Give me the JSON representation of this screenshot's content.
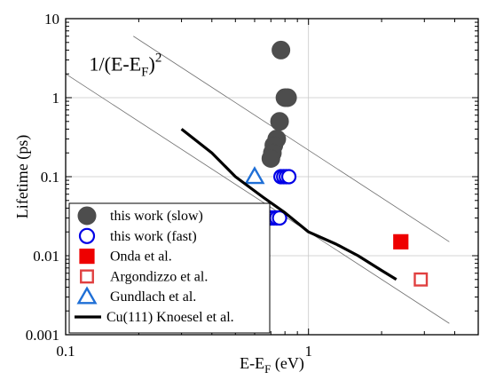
{
  "chart_data": {
    "type": "scatter",
    "xlabel": {
      "main": "E-E",
      "sub": "F",
      "tail": " (eV)"
    },
    "ylabel": "Lifetime (ps)",
    "xscale": "log",
    "yscale": "log",
    "xlim": [
      0.1,
      5
    ],
    "ylim": [
      0.001,
      10
    ],
    "x_ticks": [
      {
        "value": 0.1,
        "label": "0.1"
      },
      {
        "value": 1,
        "label": "1"
      }
    ],
    "y_ticks": [
      {
        "value": 0.001,
        "label": "0.001"
      },
      {
        "value": 0.01,
        "label": "0.01"
      },
      {
        "value": 0.1,
        "label": "0.1"
      },
      {
        "value": 1,
        "label": "1"
      },
      {
        "value": 10,
        "label": "10"
      }
    ],
    "grid": true,
    "legend_position": "bottom-left",
    "annotation": {
      "text": "1/(E-E",
      "sub": "F",
      "close": ")",
      "sup": "2",
      "x": 0.125,
      "y": 2.2
    },
    "reference_lines": [
      {
        "slope": -2,
        "x": [
          0.1,
          3.8
        ],
        "y": [
          2.0,
          0.00139
        ]
      },
      {
        "slope": -2,
        "x": [
          0.19,
          3.8
        ],
        "y": [
          6.0,
          0.015
        ]
      }
    ],
    "series": [
      {
        "name": "this work (slow)",
        "marker": "circle-filled",
        "color": "#4d4d4d",
        "x": [
          0.77,
          0.8,
          0.82,
          0.76,
          0.74,
          0.72,
          0.71,
          0.7
        ],
        "y": [
          4.0,
          1.0,
          1.0,
          0.5,
          0.3,
          0.25,
          0.2,
          0.17
        ]
      },
      {
        "name": "this work (fast)",
        "marker": "circle-open",
        "color": "#0000e6",
        "x": [
          0.77,
          0.79,
          0.81,
          0.83,
          0.7,
          0.72,
          0.74,
          0.76
        ],
        "y": [
          0.1,
          0.1,
          0.1,
          0.1,
          0.03,
          0.03,
          0.03,
          0.03
        ]
      },
      {
        "name": "Onda et al.",
        "marker": "square-filled",
        "color": "#ee0000",
        "x": [
          2.4
        ],
        "y": [
          0.015
        ]
      },
      {
        "name": "Argondizzo et al.",
        "marker": "square-open",
        "color": "#e04040",
        "x": [
          2.9
        ],
        "y": [
          0.005
        ]
      },
      {
        "name": "Gundlach et al.",
        "marker": "triangle-open",
        "color": "#1f6fd6",
        "x": [
          0.6
        ],
        "y": [
          0.1
        ]
      },
      {
        "name": "Cu(111) Knoesel et al.",
        "marker": "line",
        "color": "#000000",
        "x": [
          0.3,
          0.4,
          0.5,
          0.65,
          0.8,
          1.0,
          1.3,
          1.6,
          2.0,
          2.3
        ],
        "y": [
          0.4,
          0.2,
          0.1,
          0.055,
          0.035,
          0.02,
          0.014,
          0.01,
          0.0065,
          0.005
        ]
      }
    ]
  }
}
